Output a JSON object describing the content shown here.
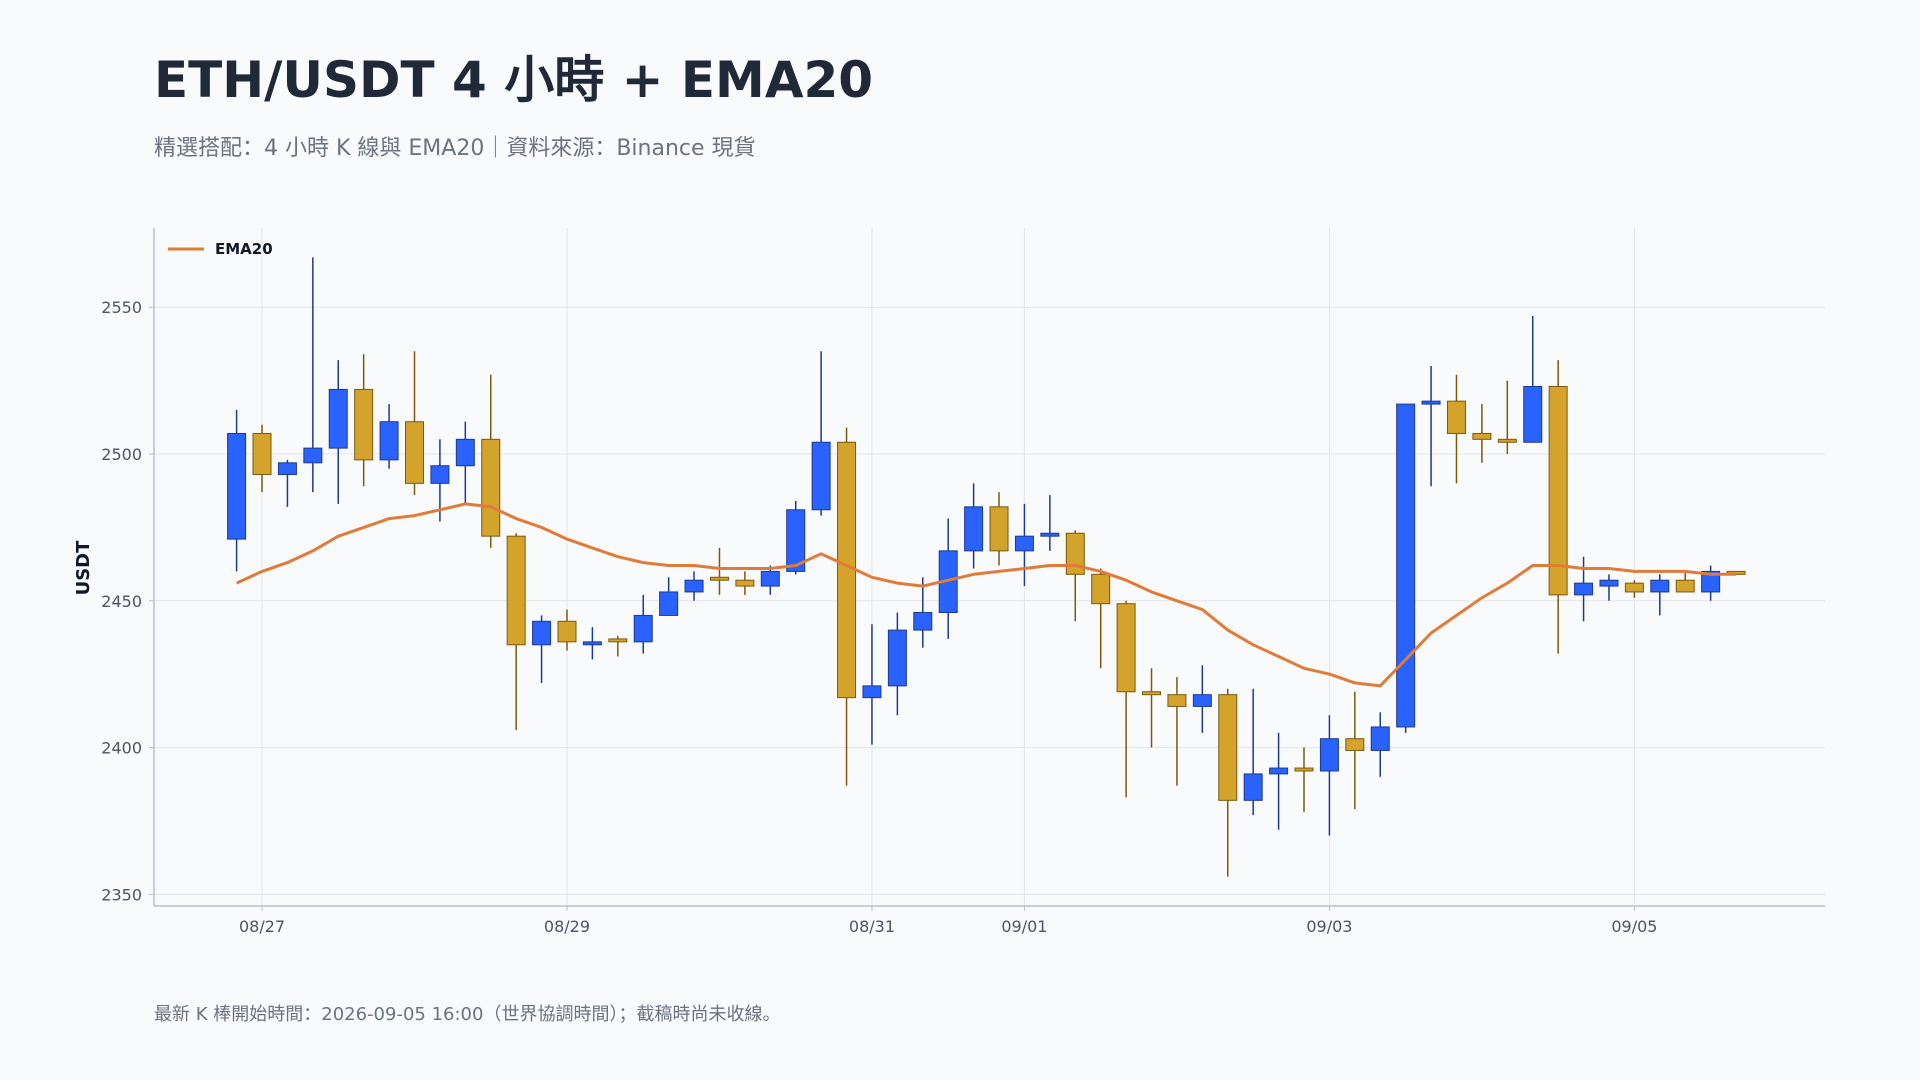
{
  "chart_data": {
    "type": "candlestick",
    "title": "ETH/USDT 4 小時 + EMA20",
    "subtitle": "精選搭配：4 小時 K 線與 EMA20｜資料來源：Binance 現貨",
    "footnote": "最新 K 棒開始時間：2026-09-05 16:00（世界協調時間）；截稿時尚未收線。",
    "ylabel": "USDT",
    "legend": "upper left",
    "grid": true,
    "up_color": "#2962ff",
    "down_color": "#d4a32b",
    "x": [
      "08/26 20:00",
      "08/27 00:00",
      "08/27 04:00",
      "08/27 08:00",
      "08/27 12:00",
      "08/27 16:00",
      "08/27 20:00",
      "08/28 00:00",
      "08/28 04:00",
      "08/28 08:00",
      "08/28 12:00",
      "08/28 16:00",
      "08/28 20:00",
      "08/29 00:00",
      "08/29 04:00",
      "08/29 08:00",
      "08/29 12:00",
      "08/29 16:00",
      "08/29 20:00",
      "08/30 00:00",
      "08/30 04:00",
      "08/30 08:00",
      "08/30 12:00",
      "08/30 16:00",
      "08/30 20:00",
      "08/31 00:00",
      "08/31 04:00",
      "08/31 08:00",
      "08/31 12:00",
      "08/31 16:00",
      "08/31 20:00",
      "09/01 00:00",
      "09/01 04:00",
      "09/01 08:00",
      "09/01 12:00",
      "09/01 16:00",
      "09/01 20:00",
      "09/02 00:00",
      "09/02 04:00",
      "09/02 08:00",
      "09/02 12:00",
      "09/02 16:00",
      "09/02 20:00",
      "09/03 00:00",
      "09/03 04:00",
      "09/03 08:00",
      "09/03 12:00",
      "09/03 16:00",
      "09/03 20:00",
      "09/04 00:00",
      "09/04 04:00",
      "09/04 08:00",
      "09/04 12:00",
      "09/04 16:00",
      "09/04 20:00",
      "09/05 00:00",
      "09/05 04:00",
      "09/05 08:00",
      "09/05 12:00",
      "09/05 16:00"
    ],
    "open": [
      2471,
      2507,
      2493,
      2497,
      2502,
      2522,
      2498,
      2511,
      2490,
      2496,
      2505,
      2472,
      2435,
      2443,
      2435,
      2437,
      2436,
      2445,
      2453,
      2458,
      2457,
      2455,
      2460,
      2481,
      2504,
      2417,
      2421,
      2440,
      2446,
      2467,
      2482,
      2467,
      2472,
      2473,
      2459,
      2449,
      2419,
      2418,
      2414,
      2418,
      2382,
      2391,
      2393,
      2392,
      2403,
      2399,
      2407,
      2517,
      2518,
      2507,
      2505,
      2504,
      2523,
      2452,
      2455,
      2456,
      2453,
      2457,
      2453,
      2460
    ],
    "high": [
      2515,
      2510,
      2498,
      2567,
      2532,
      2534,
      2517,
      2535,
      2505,
      2511,
      2527,
      2473,
      2445,
      2447,
      2441,
      2438,
      2452,
      2458,
      2460,
      2468,
      2460,
      2462,
      2484,
      2535,
      2509,
      2442,
      2446,
      2458,
      2478,
      2490,
      2487,
      2483,
      2486,
      2474,
      2461,
      2450,
      2427,
      2424,
      2428,
      2420,
      2420,
      2405,
      2400,
      2411,
      2419,
      2412,
      2517,
      2530,
      2527,
      2517,
      2525,
      2547,
      2532,
      2465,
      2459,
      2457,
      2459,
      2460,
      2462,
      2460
    ],
    "low": [
      2460,
      2487,
      2482,
      2487,
      2483,
      2489,
      2495,
      2486,
      2477,
      2483,
      2468,
      2406,
      2422,
      2433,
      2430,
      2431,
      2432,
      2445,
      2450,
      2452,
      2452,
      2452,
      2459,
      2479,
      2387,
      2401,
      2411,
      2434,
      2437,
      2461,
      2462,
      2455,
      2467,
      2443,
      2427,
      2383,
      2400,
      2387,
      2405,
      2356,
      2377,
      2372,
      2378,
      2370,
      2379,
      2390,
      2405,
      2489,
      2490,
      2497,
      2500,
      2504,
      2432,
      2443,
      2450,
      2451,
      2445,
      2453,
      2450,
      2459
    ],
    "close": [
      2507,
      2493,
      2497,
      2502,
      2522,
      2498,
      2511,
      2490,
      2496,
      2505,
      2472,
      2435,
      2443,
      2436,
      2436,
      2436,
      2445,
      2453,
      2457,
      2457,
      2455,
      2460,
      2481,
      2504,
      2417,
      2421,
      2440,
      2446,
      2467,
      2482,
      2467,
      2472,
      2473,
      2459,
      2449,
      2419,
      2418,
      2414,
      2418,
      2382,
      2391,
      2393,
      2392,
      2403,
      2399,
      2407,
      2517,
      2518,
      2507,
      2505,
      2504,
      2523,
      2452,
      2456,
      2457,
      2453,
      2457,
      2453,
      2460,
      2459
    ],
    "series": [
      {
        "name": "EMA20",
        "color": "#e07b39",
        "values": [
          2456,
          2460,
          2463,
          2467,
          2472,
          2475,
          2478,
          2479,
          2481,
          2483,
          2482,
          2478,
          2475,
          2471,
          2468,
          2465,
          2463,
          2462,
          2462,
          2461,
          2461,
          2461,
          2462,
          2466,
          2462,
          2458,
          2456,
          2455,
          2457,
          2459,
          2460,
          2461,
          2462,
          2462,
          2460,
          2457,
          2453,
          2450,
          2447,
          2440,
          2435,
          2431,
          2427,
          2425,
          2422,
          2421,
          2430,
          2439,
          2445,
          2451,
          2456,
          2462,
          2462,
          2461,
          2461,
          2460,
          2460,
          2460,
          2459,
          2459
        ]
      }
    ],
    "xlim": [
      "08/26 07:00",
      "09/06 06:00"
    ],
    "xticks": [
      {
        "value": "08/27 00:00",
        "label": "08/27"
      },
      {
        "value": "08/29 00:00",
        "label": "08/29"
      },
      {
        "value": "08/31 00:00",
        "label": "08/31"
      },
      {
        "value": "09/01 00:00",
        "label": "09/01"
      },
      {
        "value": "09/03 00:00",
        "label": "09/03"
      },
      {
        "value": "09/05 00:00",
        "label": "09/05"
      }
    ],
    "ylim": [
      2346,
      2577
    ],
    "yticks": [
      2350,
      2400,
      2450,
      2500,
      2550
    ]
  }
}
